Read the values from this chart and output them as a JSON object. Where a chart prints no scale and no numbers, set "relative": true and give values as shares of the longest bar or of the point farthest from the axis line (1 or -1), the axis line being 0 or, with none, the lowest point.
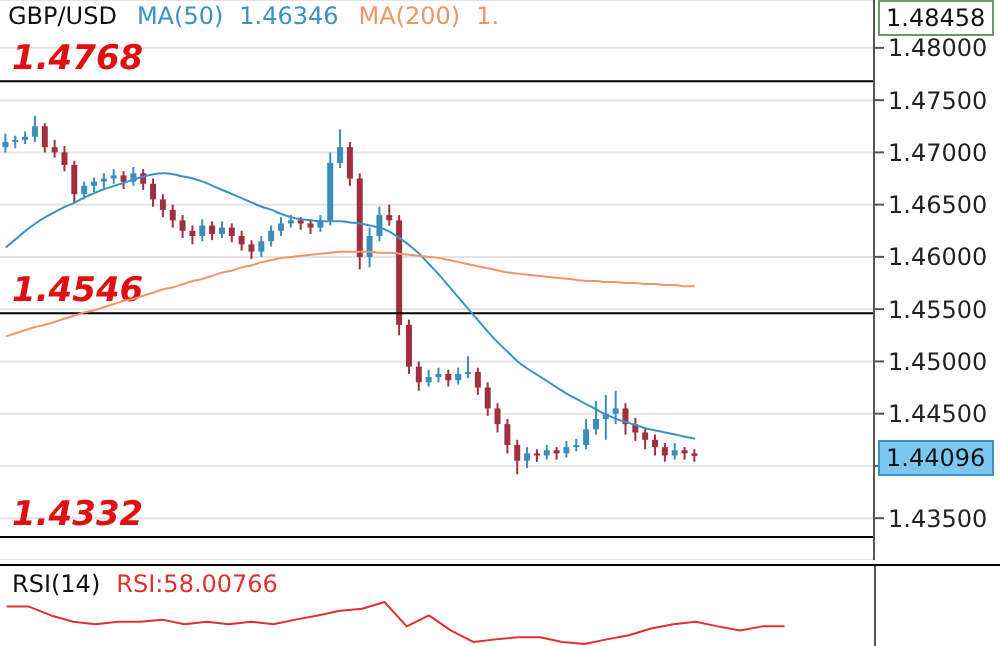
{
  "chart_data": [
    {
      "type": "candlestick",
      "title": "GBP/USD",
      "legend": "top left",
      "grid": "y",
      "tick_labels": "y",
      "categories": [
        null,
        null,
        null,
        null,
        null,
        null,
        null,
        null,
        null,
        null,
        null,
        null,
        null,
        null,
        null,
        null,
        null,
        null,
        null,
        null,
        null,
        null,
        null,
        null,
        null,
        null,
        null,
        null,
        null,
        null,
        null,
        null,
        null,
        null,
        null,
        null,
        null,
        null,
        null,
        null,
        null,
        null,
        null,
        null,
        null,
        null,
        null,
        null,
        null,
        null,
        null,
        null,
        null,
        null,
        null,
        null,
        null,
        null,
        null,
        null,
        null,
        null,
        null,
        null,
        null,
        null,
        null,
        null,
        null,
        null,
        null
      ],
      "ohlc": [
        [
          1.4705,
          1.4718,
          1.47,
          1.471
        ],
        [
          1.471,
          1.4716,
          1.4704,
          1.4712
        ],
        [
          1.4712,
          1.472,
          1.4708,
          1.4715
        ],
        [
          1.4715,
          1.4735,
          1.471,
          1.4725
        ],
        [
          1.4725,
          1.4728,
          1.47,
          1.4705
        ],
        [
          1.4705,
          1.4712,
          1.4695,
          1.47
        ],
        [
          1.47,
          1.4706,
          1.4682,
          1.4688
        ],
        [
          1.4688,
          1.4692,
          1.4652,
          1.466
        ],
        [
          1.466,
          1.4672,
          1.4655,
          1.4668
        ],
        [
          1.4668,
          1.4676,
          1.4662,
          1.4672
        ],
        [
          1.4672,
          1.468,
          1.4666,
          1.4675
        ],
        [
          1.4675,
          1.4684,
          1.467,
          1.4678
        ],
        [
          1.4678,
          1.4682,
          1.4665,
          1.4672
        ],
        [
          1.4672,
          1.4686,
          1.4668,
          1.468
        ],
        [
          1.468,
          1.4684,
          1.4664,
          1.467
        ],
        [
          1.467,
          1.4675,
          1.4648,
          1.4655
        ],
        [
          1.4655,
          1.466,
          1.4638,
          1.4645
        ],
        [
          1.4645,
          1.465,
          1.4628,
          1.4635
        ],
        [
          1.4635,
          1.464,
          1.4618,
          1.4625
        ],
        [
          1.4625,
          1.463,
          1.4612,
          1.462
        ],
        [
          1.462,
          1.4636,
          1.4615,
          1.463
        ],
        [
          1.463,
          1.4634,
          1.4616,
          1.4622
        ],
        [
          1.4622,
          1.4634,
          1.4618,
          1.4628
        ],
        [
          1.4628,
          1.4632,
          1.4614,
          1.462
        ],
        [
          1.462,
          1.4625,
          1.4606,
          1.4612
        ],
        [
          1.4612,
          1.4616,
          1.4598,
          1.4605
        ],
        [
          1.4605,
          1.462,
          1.46,
          1.4615
        ],
        [
          1.4615,
          1.463,
          1.461,
          1.4625
        ],
        [
          1.4625,
          1.4638,
          1.462,
          1.4632
        ],
        [
          1.4632,
          1.464,
          1.4628,
          1.4635
        ],
        [
          1.4635,
          1.4638,
          1.4626,
          1.4632
        ],
        [
          1.4632,
          1.4636,
          1.4622,
          1.4628
        ],
        [
          1.4628,
          1.464,
          1.4624,
          1.4635
        ],
        [
          1.4635,
          1.47,
          1.463,
          1.469
        ],
        [
          1.469,
          1.4722,
          1.4685,
          1.4705
        ],
        [
          1.4705,
          1.471,
          1.4668,
          1.4675
        ],
        [
          1.4675,
          1.468,
          1.4588,
          1.46
        ],
        [
          1.46,
          1.4628,
          1.459,
          1.462
        ],
        [
          1.462,
          1.4648,
          1.4615,
          1.464
        ],
        [
          1.464,
          1.465,
          1.463,
          1.4635
        ],
        [
          1.4635,
          1.464,
          1.4525,
          1.4535
        ],
        [
          1.4535,
          1.454,
          1.4488,
          1.4495
        ],
        [
          1.4495,
          1.45,
          1.4472,
          1.448
        ],
        [
          1.448,
          1.4492,
          1.4476,
          1.4485
        ],
        [
          1.4485,
          1.4494,
          1.448,
          1.4488
        ],
        [
          1.4488,
          1.4492,
          1.4476,
          1.4482
        ],
        [
          1.4482,
          1.4494,
          1.4478,
          1.4488
        ],
        [
          1.4488,
          1.4505,
          1.4484,
          1.449
        ],
        [
          1.449,
          1.4494,
          1.4468,
          1.4475
        ],
        [
          1.4475,
          1.448,
          1.4448,
          1.4455
        ],
        [
          1.4455,
          1.446,
          1.4432,
          1.444
        ],
        [
          1.444,
          1.4445,
          1.4412,
          1.442
        ],
        [
          1.442,
          1.4425,
          1.4392,
          1.4405
        ],
        [
          1.4405,
          1.4418,
          1.4398,
          1.4412
        ],
        [
          1.4412,
          1.4416,
          1.4404,
          1.441
        ],
        [
          1.441,
          1.442,
          1.4406,
          1.4415
        ],
        [
          1.4415,
          1.4418,
          1.4406,
          1.4412
        ],
        [
          1.4412,
          1.4424,
          1.4408,
          1.4418
        ],
        [
          1.4418,
          1.4426,
          1.4414,
          1.442
        ],
        [
          1.442,
          1.4445,
          1.4416,
          1.4435
        ],
        [
          1.4435,
          1.4462,
          1.443,
          1.4445
        ],
        [
          1.4445,
          1.4468,
          1.4425,
          1.445
        ],
        [
          1.445,
          1.4472,
          1.444,
          1.4455
        ],
        [
          1.4455,
          1.446,
          1.443,
          1.444
        ],
        [
          1.444,
          1.4446,
          1.4424,
          1.4432
        ],
        [
          1.4432,
          1.4436,
          1.4416,
          1.4425
        ],
        [
          1.4425,
          1.443,
          1.441,
          1.4418
        ],
        [
          1.4418,
          1.4422,
          1.4404,
          1.441
        ],
        [
          1.441,
          1.4422,
          1.4406,
          1.4415
        ],
        [
          1.4415,
          1.4418,
          1.4406,
          1.4412
        ],
        [
          1.4412,
          1.4416,
          1.4404,
          1.44096
        ]
      ],
      "colors": [
        "#3b8dbd",
        "#3b8dbd",
        "#3b8dbd",
        "#3b8dbd",
        "#a03040",
        "#a03040",
        "#a03040",
        "#a03040",
        "#3b8dbd",
        "#3b8dbd",
        "#3b8dbd",
        "#3b8dbd",
        "#a03040",
        "#3b8dbd",
        "#a03040",
        "#a03040",
        "#a03040",
        "#a03040",
        "#a03040",
        "#a03040",
        "#3b8dbd",
        "#a03040",
        "#3b8dbd",
        "#a03040",
        "#a03040",
        "#a03040",
        "#3b8dbd",
        "#3b8dbd",
        "#3b8dbd",
        "#3b8dbd",
        "#a03040",
        "#a03040",
        "#3b8dbd",
        "#3b8dbd",
        "#3b8dbd",
        "#a03040",
        "#a03040",
        "#3b8dbd",
        "#3b8dbd",
        "#a03040",
        "#a03040",
        "#a03040",
        "#a03040",
        "#3b8dbd",
        "#3b8dbd",
        "#a03040",
        "#3b8dbd",
        "#3b8dbd",
        "#a03040",
        "#a03040",
        "#a03040",
        "#a03040",
        "#a03040",
        "#3b8dbd",
        "#a03040",
        "#3b8dbd",
        "#a03040",
        "#3b8dbd",
        "#3b8dbd",
        "#3b8dbd",
        "#3b8dbd",
        "#3b8dbd",
        "#3b8dbd",
        "#a03040",
        "#a03040",
        "#a03040",
        "#a03040",
        "#a03040",
        "#3b8dbd",
        "#a03040",
        "#a03040"
      ],
      "series": [
        {
          "name": "MA(50)",
          "type": "line",
          "color": "#3a93c3",
          "values": [
            1.4609,
            1.4617,
            1.4625,
            1.4632,
            1.4638,
            1.4643,
            1.4648,
            1.4652,
            1.4657,
            1.4661,
            1.4665,
            1.4668,
            1.4671,
            1.4674,
            1.4677,
            1.4679,
            1.468,
            1.4679,
            1.4677,
            1.4675,
            1.4672,
            1.4668,
            1.4664,
            1.466,
            1.4656,
            1.4652,
            1.4648,
            1.4645,
            1.4641,
            1.4638,
            1.4636,
            1.4635,
            1.4634,
            1.4634,
            1.4634,
            1.4633,
            1.4632,
            1.463,
            1.4628,
            1.4624,
            1.4618,
            1.4611,
            1.4603,
            1.4593,
            1.4583,
            1.4572,
            1.4561,
            1.455,
            1.4539,
            1.4528,
            1.4518,
            1.4509,
            1.45,
            1.4493,
            1.4487,
            1.4481,
            1.4475,
            1.4469,
            1.4464,
            1.4459,
            1.4454,
            1.4449,
            1.4445,
            1.4442,
            1.4439,
            1.4436,
            1.4434,
            1.4432,
            1.443,
            1.4428,
            1.4426
          ]
        },
        {
          "name": "MA(200)",
          "type": "line",
          "color": "#f0956a",
          "values": [
            1.4524,
            1.4527,
            1.453,
            1.4533,
            1.4535,
            1.4538,
            1.4541,
            1.4544,
            1.4547,
            1.4549,
            1.4552,
            1.4555,
            1.4558,
            1.456,
            1.4563,
            1.4566,
            1.4569,
            1.4571,
            1.4574,
            1.4577,
            1.4579,
            1.4582,
            1.4585,
            1.4587,
            1.459,
            1.4592,
            1.4595,
            1.4597,
            1.4599,
            1.46,
            1.4601,
            1.4602,
            1.4603,
            1.4604,
            1.4605,
            1.4605,
            1.4605,
            1.4605,
            1.4604,
            1.4604,
            1.4603,
            1.4602,
            1.4601,
            1.46,
            1.4599,
            1.4597,
            1.4595,
            1.4593,
            1.4591,
            1.4589,
            1.4587,
            1.4585,
            1.4584,
            1.4583,
            1.4582,
            1.4581,
            1.458,
            1.4579,
            1.4578,
            1.4577,
            1.4577,
            1.4576,
            1.4576,
            1.4575,
            1.4575,
            1.4574,
            1.4574,
            1.4573,
            1.4573,
            1.4572,
            1.4572
          ]
        }
      ],
      "ylim": [
        1.431,
        1.48458
      ],
      "yticks": [
        {
          "value": 1.435,
          "label": "1.43500"
        },
        {
          "value": 1.44,
          "label": null
        },
        {
          "value": 1.445,
          "label": "1.44500"
        },
        {
          "value": 1.45,
          "label": "1.45000"
        },
        {
          "value": 1.455,
          "label": "1.45500"
        },
        {
          "value": 1.46,
          "label": "1.46000"
        },
        {
          "value": 1.465,
          "label": "1.46500"
        },
        {
          "value": 1.47,
          "label": "1.47000"
        },
        {
          "value": 1.475,
          "label": "1.47500"
        },
        {
          "value": 1.48,
          "label": "1.48000"
        }
      ],
      "ref_lines": [
        {
          "axis": "y",
          "value": 1.4768,
          "label": "1.4768",
          "color": "#000000"
        },
        {
          "axis": "y",
          "value": 1.4546,
          "label": "1.4546",
          "color": "#000000"
        },
        {
          "axis": "y",
          "value": 1.4332,
          "label": "1.4332",
          "color": "#000000"
        }
      ],
      "annotations": [
        "1.46346",
        "1.",
        "1.48458",
        "1.44096"
      ]
    },
    {
      "type": "line",
      "title": "RSI(14)",
      "relative": true,
      "categories": [
        null,
        null,
        null,
        null,
        null,
        null,
        null,
        null,
        null,
        null,
        null,
        null,
        null,
        null,
        null,
        null,
        null,
        null,
        null,
        null,
        null,
        null,
        null,
        null,
        null,
        null,
        null,
        null,
        null,
        null,
        null,
        null,
        null,
        null,
        null,
        null
      ],
      "series": [
        {
          "color": "#e03030",
          "values": [
            0.89,
            0.89,
            0.68,
            0.53,
            0.47,
            0.53,
            0.53,
            0.58,
            0.47,
            0.53,
            0.47,
            0.53,
            0.47,
            0.58,
            0.68,
            0.79,
            0.84,
            1,
            0.42,
            0.68,
            0.32,
            0.05,
            0.11,
            0.16,
            0.16,
            0.05,
            0,
            0.11,
            0.21,
            0.37,
            0.47,
            0.53,
            0.42,
            0.32,
            0.42,
            0.42
          ]
        }
      ],
      "annotations": [
        "RSI:58.00766"
      ]
    }
  ]
}
